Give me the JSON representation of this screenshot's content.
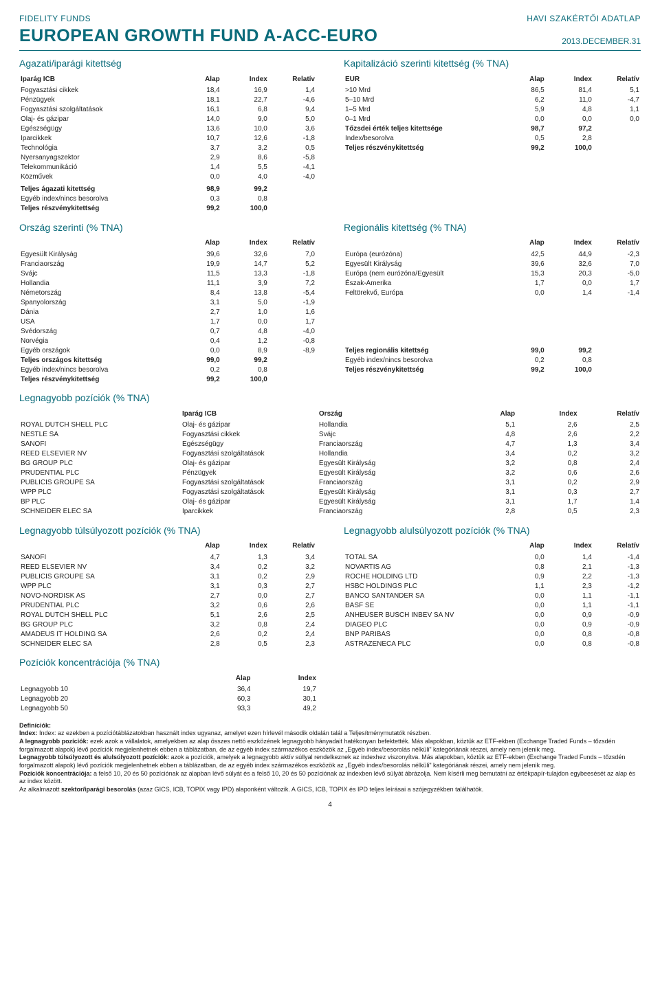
{
  "header": {
    "brand": "FIDELITY FUNDS",
    "havi": "HAVI SZAKÉRTŐI ADATLAP",
    "title": "EUROPEAN GROWTH FUND A-ACC-EURO",
    "date": "2013.DECEMBER.31"
  },
  "sector": {
    "title": "Agazati/iparági kitettség",
    "hdr": [
      "Iparág ICB",
      "Alap",
      "Index",
      "Relatív"
    ],
    "rows": [
      [
        "Fogyasztási cikkek",
        "18,4",
        "16,9",
        "1,4"
      ],
      [
        "Pénzügyek",
        "18,1",
        "22,7",
        "-4,6"
      ],
      [
        "Fogyasztási szolgáltatások",
        "16,1",
        "6,8",
        "9,4"
      ],
      [
        "Olaj- és gázipar",
        "14,0",
        "9,0",
        "5,0"
      ],
      [
        "Egészségügy",
        "13,6",
        "10,0",
        "3,6"
      ],
      [
        "Iparcikkek",
        "10,7",
        "12,6",
        "-1,8"
      ],
      [
        "Technológia",
        "3,7",
        "3,2",
        "0,5"
      ],
      [
        "Nyersanyagszektor",
        "2,9",
        "8,6",
        "-5,8"
      ],
      [
        "Telekommunikáció",
        "1,4",
        "5,5",
        "-4,1"
      ],
      [
        "Közművek",
        "0,0",
        "4,0",
        "-4,0"
      ]
    ],
    "total": [
      "Teljes ágazati kitettség",
      "98,9",
      "99,2",
      ""
    ],
    "other": [
      "Egyéb index/nincs besorolva",
      "0,3",
      "0,8",
      ""
    ],
    "equity": [
      "Teljes részvénykitettség",
      "99,2",
      "100,0",
      ""
    ]
  },
  "cap": {
    "title": "Kapitalizáció szerinti kitettség (% TNA)",
    "hdr": [
      "EUR",
      "Alap",
      "Index",
      "Relatív"
    ],
    "rows": [
      [
        ">10 Mrd",
        "86,5",
        "81,4",
        "5,1"
      ],
      [
        "5–10 Mrd",
        "6,2",
        "11,0",
        "-4,7"
      ],
      [
        "1–5 Mrd",
        "5,9",
        "4,8",
        "1,1"
      ],
      [
        "0–1 Mrd",
        "0,0",
        "0,0",
        "0,0"
      ]
    ],
    "total": [
      "Tőzsdei érték teljes kitettsége",
      "98,7",
      "97,2",
      ""
    ],
    "other": [
      "Index/besorolva",
      "0,5",
      "2,8",
      ""
    ],
    "equity": [
      "Teljes részvénykitettség",
      "99,2",
      "100,0",
      ""
    ]
  },
  "country": {
    "title": "Ország szerinti (% TNA)",
    "hdr": [
      "",
      "Alap",
      "Index",
      "Relatív"
    ],
    "rows": [
      [
        "Egyesült Királyság",
        "39,6",
        "32,6",
        "7,0"
      ],
      [
        "Franciaország",
        "19,9",
        "14,7",
        "5,2"
      ],
      [
        "Svájc",
        "11,5",
        "13,3",
        "-1,8"
      ],
      [
        "Hollandia",
        "11,1",
        "3,9",
        "7,2"
      ],
      [
        "Németország",
        "8,4",
        "13,8",
        "-5,4"
      ],
      [
        "Spanyolország",
        "3,1",
        "5,0",
        "-1,9"
      ],
      [
        "Dánia",
        "2,7",
        "1,0",
        "1,6"
      ],
      [
        "USA",
        "1,7",
        "0,0",
        "1,7"
      ],
      [
        "Svédország",
        "0,7",
        "4,8",
        "-4,0"
      ],
      [
        "Norvégia",
        "0,4",
        "1,2",
        "-0,8"
      ],
      [
        "Egyéb országok",
        "0,0",
        "8,9",
        "-8,9"
      ]
    ],
    "total": [
      "Teljes országos kitettség",
      "99,0",
      "99,2",
      ""
    ],
    "other": [
      "Egyéb index/nincs besorolva",
      "0,2",
      "0,8",
      ""
    ],
    "equity": [
      "Teljes részvénykitettség",
      "99,2",
      "100,0",
      ""
    ]
  },
  "region": {
    "title": "Regionális kitettség (% TNA)",
    "hdr": [
      "",
      "Alap",
      "Index",
      "Relatív"
    ],
    "rows": [
      [
        "Európa (eurózóna)",
        "42,5",
        "44,9",
        "-2,3"
      ],
      [
        "Egyesült Királyság",
        "39,6",
        "32,6",
        "7,0"
      ],
      [
        "Európa (nem eurózóna/Egyesült",
        "15,3",
        "20,3",
        "-5,0"
      ],
      [
        "Észak-Amerika",
        "1,7",
        "0,0",
        "1,7"
      ],
      [
        "Feltörekvő, Európa",
        "0,0",
        "1,4",
        "-1,4"
      ]
    ],
    "total": [
      "Teljes regionális kitettség",
      "99,0",
      "99,2",
      ""
    ],
    "other": [
      "Egyéb index/nincs besorolva",
      "0,2",
      "0,8",
      ""
    ],
    "equity": [
      "Teljes részvénykitettség",
      "99,2",
      "100,0",
      ""
    ]
  },
  "positions": {
    "title": "Legnagyobb pozíciók (% TNA)",
    "hdr": [
      "",
      "Iparág ICB",
      "Ország",
      "Alap",
      "Index",
      "Relatív"
    ],
    "rows": [
      [
        "ROYAL DUTCH SHELL PLC",
        "Olaj- és gázipar",
        "Hollandia",
        "5,1",
        "2,6",
        "2,5"
      ],
      [
        "NESTLE SA",
        "Fogyasztási cikkek",
        "Svájc",
        "4,8",
        "2,6",
        "2,2"
      ],
      [
        "SANOFI",
        "Egészségügy",
        "Franciaország",
        "4,7",
        "1,3",
        "3,4"
      ],
      [
        "REED ELSEVIER NV",
        "Fogyasztási szolgáltatások",
        "Hollandia",
        "3,4",
        "0,2",
        "3,2"
      ],
      [
        "BG GROUP PLC",
        "Olaj- és gázipar",
        "Egyesült Királyság",
        "3,2",
        "0,8",
        "2,4"
      ],
      [
        "PRUDENTIAL PLC",
        "Pénzügyek",
        "Egyesült Királyság",
        "3,2",
        "0,6",
        "2,6"
      ],
      [
        "PUBLICIS GROUPE SA",
        "Fogyasztási szolgáltatások",
        "Franciaország",
        "3,1",
        "0,2",
        "2,9"
      ],
      [
        "WPP PLC",
        "Fogyasztási szolgáltatások",
        "Egyesült Királyság",
        "3,1",
        "0,3",
        "2,7"
      ],
      [
        "BP PLC",
        "Olaj- és gázipar",
        "Egyesült Királyság",
        "3,1",
        "1,7",
        "1,4"
      ],
      [
        "SCHNEIDER ELEC SA",
        "Iparcikkek",
        "Franciaország",
        "2,8",
        "0,5",
        "2,3"
      ]
    ]
  },
  "overweight": {
    "title": "Legnagyobb túlsúlyozott pozíciók (% TNA)",
    "hdr": [
      "",
      "Alap",
      "Index",
      "Relatív"
    ],
    "rows": [
      [
        "SANOFI",
        "4,7",
        "1,3",
        "3,4"
      ],
      [
        "REED ELSEVIER NV",
        "3,4",
        "0,2",
        "3,2"
      ],
      [
        "PUBLICIS GROUPE SA",
        "3,1",
        "0,2",
        "2,9"
      ],
      [
        "WPP PLC",
        "3,1",
        "0,3",
        "2,7"
      ],
      [
        "NOVO-NORDISK AS",
        "2,7",
        "0,0",
        "2,7"
      ],
      [
        "PRUDENTIAL PLC",
        "3,2",
        "0,6",
        "2,6"
      ],
      [
        "ROYAL DUTCH SHELL PLC",
        "5,1",
        "2,6",
        "2,5"
      ],
      [
        "BG GROUP PLC",
        "3,2",
        "0,8",
        "2,4"
      ],
      [
        "AMADEUS IT HOLDING SA",
        "2,6",
        "0,2",
        "2,4"
      ],
      [
        "SCHNEIDER ELEC SA",
        "2,8",
        "0,5",
        "2,3"
      ]
    ]
  },
  "underweight": {
    "title": "Legnagyobb alulsúlyozott pozíciók (% TNA)",
    "hdr": [
      "",
      "Alap",
      "Index",
      "Relatív"
    ],
    "rows": [
      [
        "TOTAL SA",
        "0,0",
        "1,4",
        "-1,4"
      ],
      [
        "NOVARTIS AG",
        "0,8",
        "2,1",
        "-1,3"
      ],
      [
        "ROCHE HOLDING LTD",
        "0,9",
        "2,2",
        "-1,3"
      ],
      [
        "HSBC HOLDINGS PLC",
        "1,1",
        "2,3",
        "-1,2"
      ],
      [
        "BANCO SANTANDER SA",
        "0,0",
        "1,1",
        "-1,1"
      ],
      [
        "BASF SE",
        "0,0",
        "1,1",
        "-1,1"
      ],
      [
        "ANHEUSER BUSCH INBEV SA NV",
        "0,0",
        "0,9",
        "-0,9"
      ],
      [
        "DIAGEO PLC",
        "0,0",
        "0,9",
        "-0,9"
      ],
      [
        "BNP PARIBAS",
        "0,0",
        "0,8",
        "-0,8"
      ],
      [
        "ASTRAZENECA PLC",
        "0,0",
        "0,8",
        "-0,8"
      ]
    ]
  },
  "concentration": {
    "title": "Pozíciók koncentrációja (% TNA)",
    "hdr": [
      "",
      "Alap",
      "Index"
    ],
    "rows": [
      [
        "Legnagyobb 10",
        "36,4",
        "19,7"
      ],
      [
        "Legnagyobb 20",
        "60,3",
        "30,1"
      ],
      [
        "Legnagyobb 50",
        "93,3",
        "49,2"
      ]
    ]
  },
  "defs": {
    "title": "Definíciók:",
    "d1": "Index: az ezekben a pozíciótáblázatokban használt index ugyanaz, amelyet ezen hírlevél második oldalán talál a Teljesítménymutatók részben.",
    "d2a": "A legnagyobb pozíciók:",
    "d2b": " ezek azok a vállalatok, amelyekben az alap összes nettó eszközének legnagyobb hányadait hatékonyan befektették. Más alapokban, köztük az ETF-ekben (Exchange Traded Funds – tőzsdén forgalmazott alapok) lévő pozíciók megjelenhetnek ebben a táblázatban, de az egyéb index származékos eszközök az „Egyéb index/besorolás nélküli\" kategóriának részei, amely nem jelenik meg.",
    "d3a": "Legnagyobb túlsúlyozott és alulsúlyozott pozíciók:",
    "d3b": " azok a pozíciók, amelyek a legnagyobb aktív súllyal rendelkeznek az indexhez viszonyítva. Más alapokban, köztük az ETF-ekben (Exchange Traded Funds – tőzsdén forgalmazott alapok) lévő pozíciók megjelenhetnek ebben a táblázatban, de az egyéb index származékos eszközök az „Egyéb index/besorolás nélküli\" kategóriának részei, amely nem jelenik meg.",
    "d4a": "Pozíciók koncentrációja:",
    "d4b": " a felső 10, 20 és 50 pozíciónak az alapban lévő súlyát és a felső 10, 20 és 50 pozíciónak az indexben lévő súlyát ábrázolja. Nem kísérli meg bemutatni az értékpapír-tulajdon egybeesését az alap és az index között.",
    "d5": "Az alkalmazott szektor/iparági besorolás (azaz GICS, ICB, TOPIX vagy IPD) alaponként változik. A GICS, ICB, TOPIX és IPD teljes leírásai a szójegyzékben találhatók.",
    "d5a": "szektor/iparági besorolás"
  },
  "page": "4"
}
